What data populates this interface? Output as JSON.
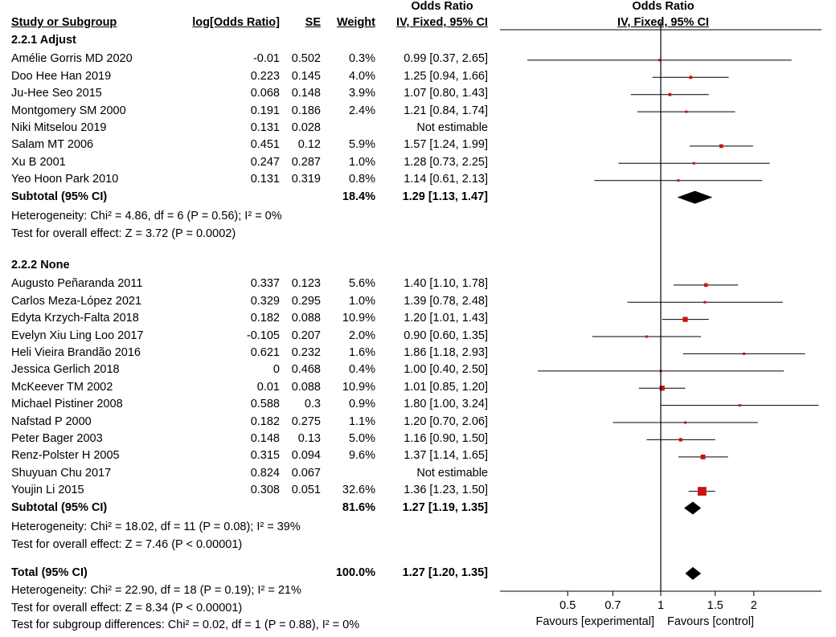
{
  "chart_data": {
    "type": "forest",
    "header": {
      "study": "Study or Subgroup",
      "logor": "log[Odds Ratio]",
      "se": "SE",
      "weight": "Weight",
      "or_top": "Odds Ratio",
      "or_bottom": "IV, Fixed, 95% CI",
      "plot_top": "Odds Ratio",
      "plot_bottom": "IV, Fixed, 95% CI"
    },
    "subgroups": [
      {
        "title": "2.2.1 Adjust",
        "studies": [
          {
            "name": "Amélie Gorris MD 2020",
            "logor": "-0.01",
            "se": "0.502",
            "weight": "0.3%",
            "ci": "0.99 [0.37, 2.65]",
            "or": 0.99,
            "lo": 0.37,
            "hi": 2.65,
            "w": 0.3
          },
          {
            "name": "Doo Hee Han 2019",
            "logor": "0.223",
            "se": "0.145",
            "weight": "4.0%",
            "ci": "1.25 [0.94, 1.66]",
            "or": 1.25,
            "lo": 0.94,
            "hi": 1.66,
            "w": 4.0
          },
          {
            "name": "Ju-Hee Seo 2015",
            "logor": "0.068",
            "se": "0.148",
            "weight": "3.9%",
            "ci": "1.07 [0.80, 1.43]",
            "or": 1.07,
            "lo": 0.8,
            "hi": 1.43,
            "w": 3.9
          },
          {
            "name": "Montgomery SM 2000",
            "logor": "0.191",
            "se": "0.186",
            "weight": "2.4%",
            "ci": "1.21 [0.84, 1.74]",
            "or": 1.21,
            "lo": 0.84,
            "hi": 1.74,
            "w": 2.4
          },
          {
            "name": "Niki Mitselou 2019",
            "logor": "0.131",
            "se": "0.028",
            "weight": "",
            "ci": "Not estimable",
            "or": null,
            "lo": null,
            "hi": null,
            "w": 0
          },
          {
            "name": "Salam MT 2006",
            "logor": "0.451",
            "se": "0.12",
            "weight": "5.9%",
            "ci": "1.57 [1.24, 1.99]",
            "or": 1.57,
            "lo": 1.24,
            "hi": 1.99,
            "w": 5.9
          },
          {
            "name": "Xu B 2001",
            "logor": "0.247",
            "se": "0.287",
            "weight": "1.0%",
            "ci": "1.28 [0.73, 2.25]",
            "or": 1.28,
            "lo": 0.73,
            "hi": 2.25,
            "w": 1.0
          },
          {
            "name": "Yeo Hoon Park 2010",
            "logor": "0.131",
            "se": "0.319",
            "weight": "0.8%",
            "ci": "1.14 [0.61, 2.13]",
            "or": 1.14,
            "lo": 0.61,
            "hi": 2.13,
            "w": 0.8
          }
        ],
        "subtotal": {
          "label": "Subtotal (95% CI)",
          "weight": "18.4%",
          "ci": "1.29 [1.13, 1.47]",
          "or": 1.29,
          "lo": 1.13,
          "hi": 1.47
        },
        "heterogeneity": "Heterogeneity: Chi² = 4.86, df = 6 (P = 0.56); I² = 0%",
        "overall": "Test for overall effect: Z = 3.72 (P = 0.0002)"
      },
      {
        "title": "2.2.2 None",
        "studies": [
          {
            "name": "Augusto Peñaranda 2011",
            "logor": "0.337",
            "se": "0.123",
            "weight": "5.6%",
            "ci": "1.40 [1.10, 1.78]",
            "or": 1.4,
            "lo": 1.1,
            "hi": 1.78,
            "w": 5.6
          },
          {
            "name": "Carlos Meza-López 2021",
            "logor": "0.329",
            "se": "0.295",
            "weight": "1.0%",
            "ci": "1.39 [0.78, 2.48]",
            "or": 1.39,
            "lo": 0.78,
            "hi": 2.48,
            "w": 1.0
          },
          {
            "name": "Edyta Krzych-Falta 2018",
            "logor": "0.182",
            "se": "0.088",
            "weight": "10.9%",
            "ci": "1.20 [1.01, 1.43]",
            "or": 1.2,
            "lo": 1.01,
            "hi": 1.43,
            "w": 10.9
          },
          {
            "name": "Evelyn Xiu Ling Loo 2017",
            "logor": "-0.105",
            "se": "0.207",
            "weight": "2.0%",
            "ci": "0.90 [0.60, 1.35]",
            "or": 0.9,
            "lo": 0.6,
            "hi": 1.35,
            "w": 2.0
          },
          {
            "name": "Heli Vieira Brandão 2016",
            "logor": "0.621",
            "se": "0.232",
            "weight": "1.6%",
            "ci": "1.86 [1.18, 2.93]",
            "or": 1.86,
            "lo": 1.18,
            "hi": 2.93,
            "w": 1.6
          },
          {
            "name": "Jessica Gerlich 2018",
            "logor": "0",
            "se": "0.468",
            "weight": "0.4%",
            "ci": "1.00 [0.40, 2.50]",
            "or": 1.0,
            "lo": 0.4,
            "hi": 2.5,
            "w": 0.4
          },
          {
            "name": "McKeever TM  2002",
            "logor": "0.01",
            "se": "0.088",
            "weight": "10.9%",
            "ci": "1.01 [0.85, 1.20]",
            "or": 1.01,
            "lo": 0.85,
            "hi": 1.2,
            "w": 10.9
          },
          {
            "name": "Michael Pistiner 2008",
            "logor": "0.588",
            "se": "0.3",
            "weight": "0.9%",
            "ci": "1.80 [1.00, 3.24]",
            "or": 1.8,
            "lo": 1.0,
            "hi": 3.24,
            "w": 0.9
          },
          {
            "name": "Nafstad P 2000",
            "logor": "0.182",
            "se": "0.275",
            "weight": "1.1%",
            "ci": "1.20 [0.70, 2.06]",
            "or": 1.2,
            "lo": 0.7,
            "hi": 2.06,
            "w": 1.1
          },
          {
            "name": "Peter Bager 2003",
            "logor": "0.148",
            "se": "0.13",
            "weight": "5.0%",
            "ci": "1.16 [0.90, 1.50]",
            "or": 1.16,
            "lo": 0.9,
            "hi": 1.5,
            "w": 5.0
          },
          {
            "name": "Renz-Polster H 2005",
            "logor": "0.315",
            "se": "0.094",
            "weight": "9.6%",
            "ci": "1.37 [1.14, 1.65]",
            "or": 1.37,
            "lo": 1.14,
            "hi": 1.65,
            "w": 9.6
          },
          {
            "name": "Shuyuan Chu 2017",
            "logor": "0.824",
            "se": "0.067",
            "weight": "",
            "ci": "Not estimable",
            "or": null,
            "lo": null,
            "hi": null,
            "w": 0
          },
          {
            "name": "Youjin Li 2015",
            "logor": "0.308",
            "se": "0.051",
            "weight": "32.6%",
            "ci": "1.36 [1.23, 1.50]",
            "or": 1.36,
            "lo": 1.23,
            "hi": 1.5,
            "w": 32.6
          }
        ],
        "subtotal": {
          "label": "Subtotal (95% CI)",
          "weight": "81.6%",
          "ci": "1.27 [1.19, 1.35]",
          "or": 1.27,
          "lo": 1.19,
          "hi": 1.35
        },
        "heterogeneity": "Heterogeneity: Chi² = 18.02, df = 11 (P = 0.08); I² = 39%",
        "overall": "Test for overall effect: Z = 7.46 (P < 0.00001)"
      }
    ],
    "total": {
      "label": "Total (95% CI)",
      "weight": "100.0%",
      "ci": "1.27 [1.20, 1.35]",
      "or": 1.27,
      "lo": 1.2,
      "hi": 1.35
    },
    "footer": [
      "Heterogeneity: Chi² = 22.90, df = 18 (P = 0.19); I² = 21%",
      "Test for overall effect: Z = 8.34 (P < 0.00001)",
      "Test for subgroup differences: Chi² = 0.02, df = 1 (P = 0.88), I² = 0%"
    ],
    "x_axis": {
      "scale": "log",
      "range": [
        0.3,
        3.3
      ],
      "ticks": [
        0.5,
        0.7,
        1,
        1.5,
        2
      ],
      "tick_labels": [
        "0.5",
        "0.7",
        "1",
        "1.5",
        "2"
      ],
      "left_label": "Favours [experimental]",
      "right_label": "Favours [control]"
    },
    "colors": {
      "square": "#cc1111",
      "diamond": "#000000",
      "line": "#000000"
    }
  }
}
